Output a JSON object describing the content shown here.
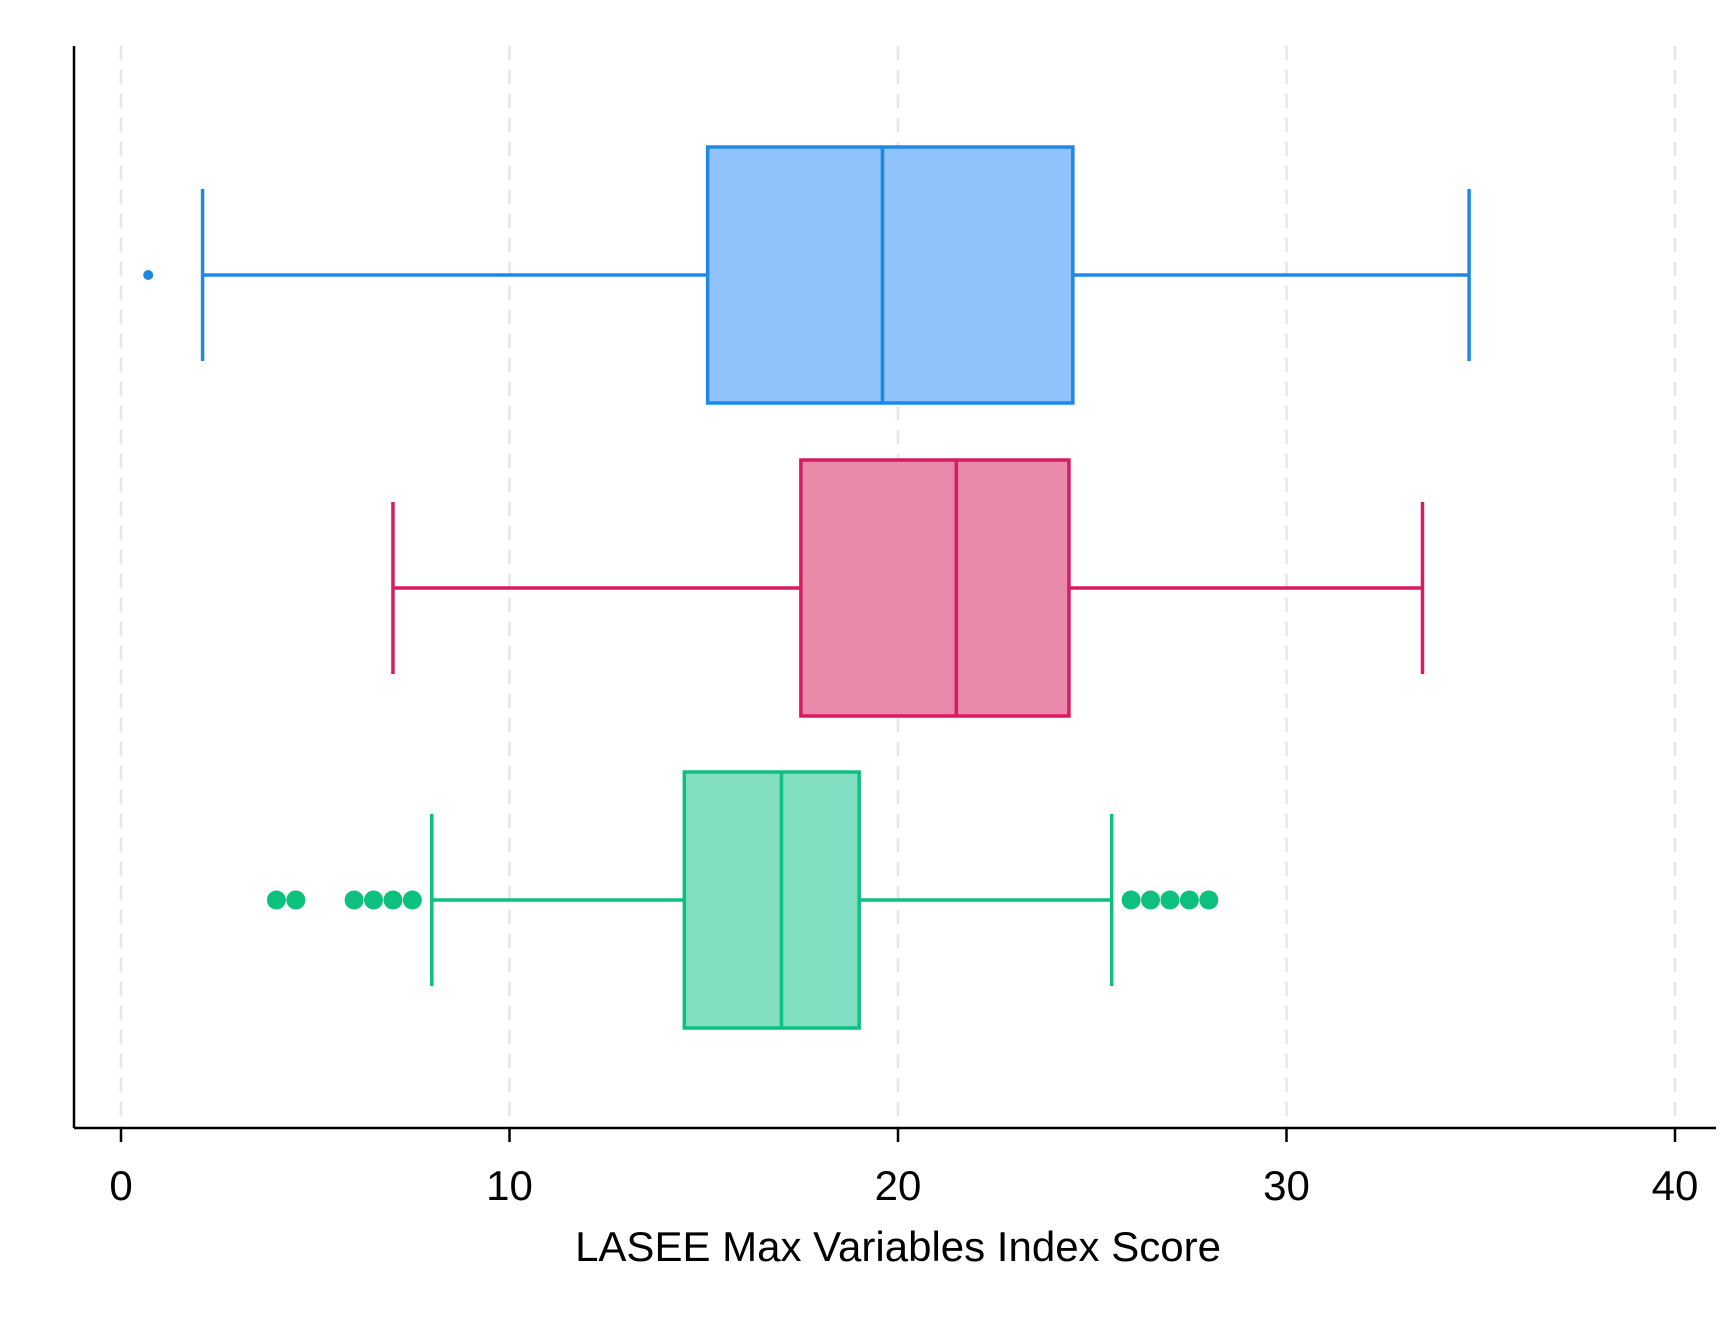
{
  "chart_data": {
    "type": "box",
    "orientation": "horizontal",
    "title": "",
    "xlabel": "LASEE Max Variables Index Score",
    "ylabel": "",
    "xlim": [
      0,
      40
    ],
    "xticks": [
      0,
      10,
      20,
      30,
      40
    ],
    "tick_labels": [
      "0",
      "10",
      "20",
      "30",
      "40"
    ],
    "grid": "vertical dashed",
    "legend": "none",
    "series": [
      {
        "color": "#1e88e5",
        "fill": "#90c2fb",
        "q1": 15.1,
        "median": 19.6,
        "q3": 24.5,
        "whisker_low": 2.1,
        "whisker_high": 34.7,
        "outliers": [
          0.7
        ],
        "outlier_size": "small"
      },
      {
        "color": "#d81b60",
        "fill": "#e889aa",
        "q1": 17.5,
        "median": 21.5,
        "q3": 24.4,
        "whisker_low": 7.0,
        "whisker_high": 33.5,
        "outliers": [],
        "outlier_size": "small"
      },
      {
        "color": "#0ec07e",
        "fill": "#82dfc1",
        "q1": 14.5,
        "median": 17.0,
        "q3": 19.0,
        "whisker_low": 8.0,
        "whisker_high": 25.5,
        "outliers": [
          4.0,
          4.5,
          6.0,
          6.5,
          7.0,
          7.5,
          26.0,
          26.5,
          27.0,
          27.5,
          28.0
        ],
        "outlier_size": "large"
      }
    ]
  }
}
